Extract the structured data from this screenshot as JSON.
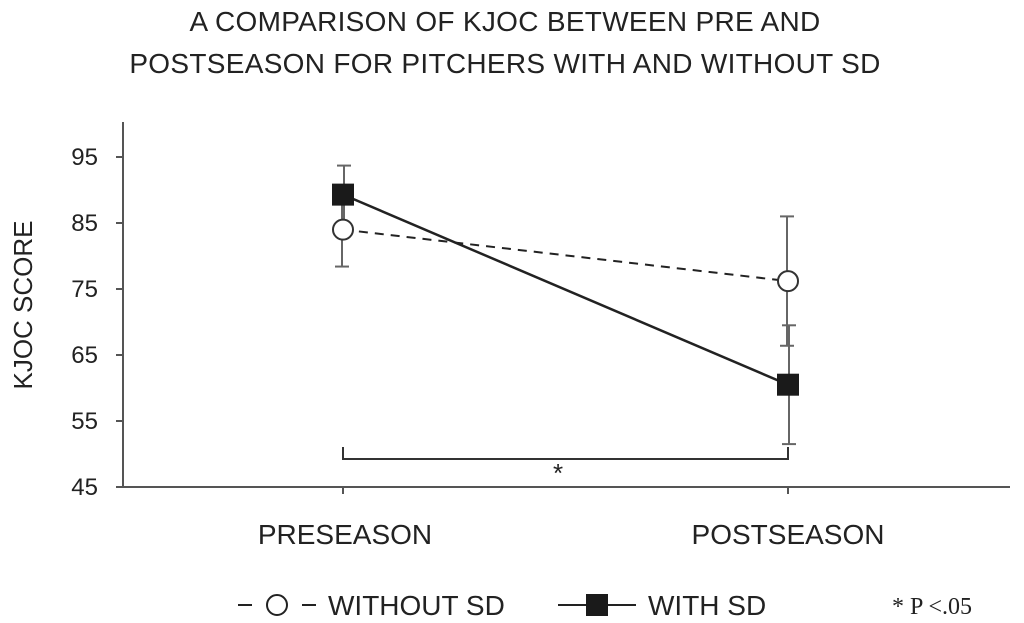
{
  "chart_data": {
    "type": "line",
    "title": "A COMPARISON OF KJOC BETWEEN PRE AND POSTSEASON FOR PITCHERS WITH AND WITHOUT SD",
    "title_lines": [
      "A COMPARISON OF KJOC BETWEEN PRE AND",
      "POSTSEASON FOR PITCHERS WITH AND WITHOUT SD"
    ],
    "xlabel": "",
    "ylabel": "KJOC SCORE",
    "categories": [
      "PRESEASON",
      "POSTSEASON"
    ],
    "ylim": [
      45,
      100
    ],
    "yticks": [
      45,
      55,
      65,
      75,
      85,
      95
    ],
    "series": [
      {
        "name": "WITHOUT SD",
        "legend_label": "- -○- WITHOUT SD",
        "line_style": "dashed",
        "marker": "open-circle",
        "values": [
          84,
          76.2
        ],
        "error": [
          5.6,
          9.8
        ]
      },
      {
        "name": "WITH SD",
        "legend_label": "WITH SD",
        "line_style": "solid",
        "marker": "filled-square",
        "values": [
          89.3,
          60.5
        ],
        "error": [
          4.4,
          9
        ]
      }
    ],
    "significance_marker": "*",
    "annotation": "* P <.05",
    "legend_position": "bottom"
  },
  "colors": {
    "axis": "#555555",
    "series_line": "#222222",
    "error_bar": "#666666",
    "text": "#222222"
  }
}
